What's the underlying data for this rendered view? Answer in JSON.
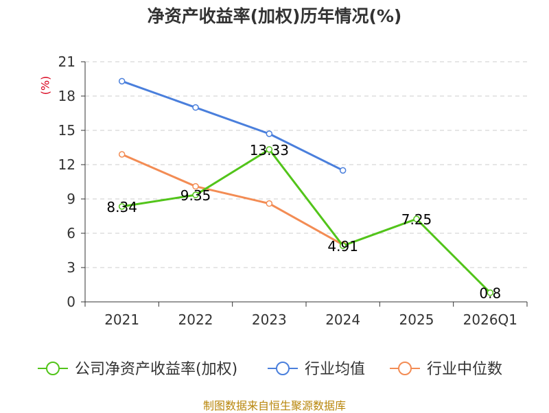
{
  "chart_data": {
    "type": "line",
    "title": "净资产收益率(加权)历年情况(%)",
    "unit_label": "(%)",
    "categories": [
      "2021",
      "2022",
      "2023",
      "2024",
      "2025",
      "2026Q1"
    ],
    "ylim": [
      0,
      21
    ],
    "yticks": [
      0,
      3,
      6,
      9,
      12,
      15,
      18,
      21
    ],
    "grid": true,
    "legend_position": "bottom",
    "series": [
      {
        "name": "公司净资产收益率(加权)",
        "color": "#52c41a",
        "values": [
          8.34,
          9.35,
          13.33,
          4.91,
          7.25,
          0.8
        ],
        "labels": [
          "8.34",
          "9.35",
          "13.33",
          "4.91",
          "7.25",
          "0.8"
        ]
      },
      {
        "name": "行业均值",
        "color": "#4a7fdc",
        "values": [
          19.3,
          17.0,
          14.7,
          11.5,
          null,
          null
        ]
      },
      {
        "name": "行业中位数",
        "color": "#f38c54",
        "values": [
          12.9,
          10.1,
          8.6,
          5.0,
          null,
          null
        ]
      }
    ]
  },
  "source": "制图数据来自恒生聚源数据库"
}
